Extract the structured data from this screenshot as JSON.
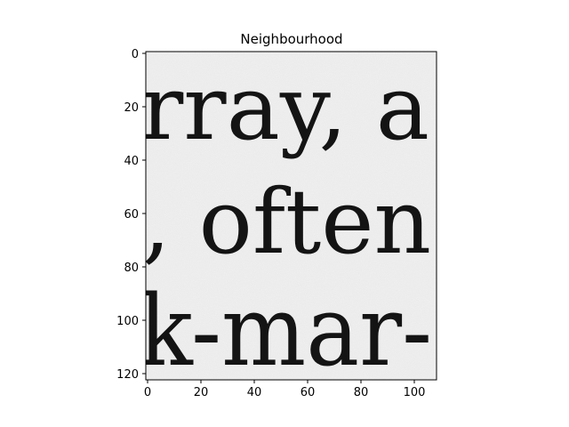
{
  "figure": {
    "title": "Neighbourhood",
    "image_text_lines": [
      "rray, a",
      ", often",
      "k-mar-"
    ]
  },
  "chart_data": {
    "type": "heatmap",
    "title": "Neighbourhood",
    "xlabel": "",
    "ylabel": "",
    "xlim": [
      0,
      108
    ],
    "ylim": [
      122,
      0
    ],
    "xticks": [
      0,
      20,
      40,
      60,
      80,
      100
    ],
    "yticks": [
      0,
      20,
      40,
      60,
      80,
      100,
      120
    ],
    "grid": false,
    "colormap": "gray",
    "content": "grayscale scan crop of printed serif text"
  },
  "colors": {
    "background": "#efefef",
    "ink": "#141414",
    "axes": "#000000"
  }
}
